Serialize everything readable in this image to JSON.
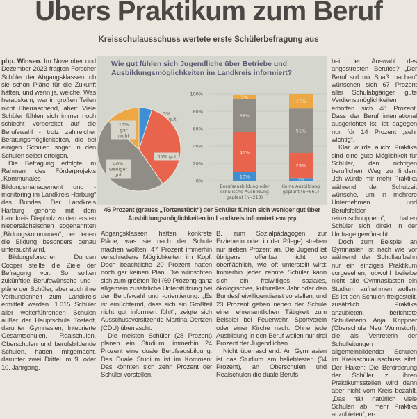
{
  "headline": "Übers Praktikum zum Beruf",
  "subtitle": "Kreisschulausschuss wertete erste Schülerbefragung aus",
  "col1": {
    "dateline": "pöp. Winsen.",
    "paragraphs": [
      "Im November und Dezember 2023 fragten Forscher Schüler der Abgangsklassen, ob sie schon Pläne für die Zukunft hätten, und wenn ja, welche. Was herauskam, war in großen Teilen nicht überraschend, aber: Viele Schüler fühlen sich immer noch schlecht vorbereitet auf die Berufswahl - trotz zahlreicher Beratungsmöglichkeiten, die bei einigen Schulen sogar in den Schulen selbst erfolgen.",
      "Die Befragung erfolgte im Rahmen des Förderprojekts „Kommunales Bildungsmanagement und -monitoring im Landkreis Harburg“ des Bundes. Der Landkreis Harburg gehörte mit dem Landkreis Diepholz zu den ersten niedersächsischen sogenannten „Bildungskommunen“, bei denen die Bildung besonders genau untersucht wird.",
      "Bildungsforscher Duncan Cooper stellte die Ziele der Befragung vor: So sollten zukünftige Berufswünsche und -pläne der Schüler, aber auch ihre Verbundenheit zum Landkreis ermittelt werden. 1.015 Schüler aller weiterführenden Schulen außer der Hauptschule Tostedt, darunter Gymnasien, Integrierte Gesamtschulen, Realschulen, Oberschulen und berufsbildende Schulen, hatten mitgemacht, darunter zwei Drittel im 9. oder 10. Jahrgang."
    ]
  },
  "col2": {
    "paragraphs": [
      "Abgangsklassen hatten konkrete Pläne, was sie nach der Schule machen wollten, 47 Prozent immerhin verschiedene Möglichkeiten im Kopf. Doch beachtliche 20 Prozent hatten noch gar keinen Plan. Die wünschten sich zum größten Teil (69 Prozent) ganz allgemein zusätzliche Unterstützung bei der Berufswahl und -orientierung. „Es ist ernüchternd, dass sich ein Großteil nicht gut informiert fühlt“, zeigte sich Ausschussvorsitzende Martina Oertzen (CDU) überrascht.",
      "Die meisten Schüler (28 Prozent) planen ein Studium, immerhin 24 Prozent eine duale Berufsausbildung. Das Duale Studium ist im Kommen: Das könnten sich zehn Prozent der Schüler vorstellen."
    ]
  },
  "col3": {
    "paragraphs": [
      "B. zum Sozialpädagogen, zur Erzieherin oder in der Pflege) streben nur sieben Prozent an. Die Jugend ist übrigens offenbar nicht so oberflächlich, wie oft unterstellt wird: Immerhin jeder zehnte Schüler kann sich ein freiwilliges soziales, ökologisches, kulturelles Jahr oder den Bundesfreiwilligendienst vorstellen, und 23 Prozent gehen neben der Schule einer ehrenamtlichen Tätigkeit zum Beispiel bei Feuerwehr, Sportverein oder einer Kirche nach. Ohne jede Ausbildung in den Beruf wollen nur drei Prozent der Jugendlichen.",
      "Nicht überraschend: An Gymnasien ist das Studium am beliebtesten (34 Prozent), an Oberschulen und Realschulen die duale Berufs-"
    ]
  },
  "col4": {
    "paragraphs": [
      "bei der Auswahl des angestrebten Berufes? „Der Beruf soll mir Spaß machen“ wünschen sich 67 Prozent aller Schulabgänger, gute Verdienstmöglichkeiten erhoffen sich 48 Prozent. Dass der Beruf international ausgerichtet ist, ist dagegen nur für 14 Prozent „sehr wichtig“.",
      "Klar wurde auch: Praktika sind eine gute Möglichkeit für Schüler, den richtigen beruflichen Weg zu finden. „Ich würde mir mehr Praktika während der Schulzeit wünsche, um in mehrere Unternehmen und Berufsfelder reinzuschnuppern“, hatten Schüler sich direkt in der Umfrage gewünscht.",
      "Doch zum Beispiel an Gymnasien ist nach wie vor während der Schullaufbahn nur ein einziges Praktikum vorgesehen, obwohl beileibe nicht alle Gymnasiasten ein Studium aufnehmen wollen. Es ist den Schulen freigestellt, zusätzlich Praktika anzubieten, berichtete Schulleiterin Anja Krippner (Oberschule Neu Wulmstorf), die als Vertreterin der Schulleitungen allgemeinbildender Schulen im Kreisschulausschuss sitzt. Der Haken: Die Beförderung der Schüler zu ihren Praktikumsstellen wird dann aber nicht vom Kreis bezahlt. „Das hält natürlich viele Schulen ab, mehr Praktika anzubieten“, er-"
    ]
  },
  "chart": {
    "title": "Wie gut fühlen sich Jugendliche über Betriebe und Ausbildungsmöglichkeiten im Landkreis informiert?"
  },
  "caption": {
    "text": "46 Prozent (graues „Tortenstück“) der Schüler fühlen sich weniger gut über Ausbildungsmöglichkeiten im Landkreis informiert",
    "credit": "Foto: pöp"
  },
  "chart_data": [
    {
      "type": "pie",
      "slices": [
        {
          "label": "5% sehr gut",
          "value": 5,
          "color": "#3f8fd2"
        },
        {
          "label": "35% gut",
          "value": 35,
          "color": "#e8644c"
        },
        {
          "label": "46% weniger gut",
          "value": 46,
          "color": "#8f8d85"
        },
        {
          "label": "13% gar nicht",
          "value": 13,
          "color": "#eda843"
        }
      ]
    },
    {
      "type": "bar",
      "stacked": true,
      "ylim": [
        0,
        100
      ],
      "yticks": [
        "0%",
        "20%",
        "40%",
        "60%",
        "80%",
        "100%"
      ],
      "categories": [
        "Berufsausbildung oder schulische Ausbildung geplant (n=213)",
        "Keine Ausbildung geplant (n=561)"
      ],
      "category_lines": [
        [
          "Berufsausbildung oder",
          "schulische Ausbildung",
          "geplant (n=213)"
        ],
        [
          "Keine Ausbildung",
          "geplant (n=561)"
        ]
      ],
      "series": [
        {
          "name": "sehr gut",
          "color": "#3f8fd2",
          "values": [
            10,
            3
          ],
          "labels": [
            "10%",
            "3%"
          ]
        },
        {
          "name": "gut",
          "color": "#e8644c",
          "values": [
            46,
            29
          ],
          "labels": [
            "46%",
            "29%"
          ]
        },
        {
          "name": "weniger gut",
          "color": "#8f8d85",
          "values": [
            38,
            51
          ],
          "labels": [
            "38%",
            "51%"
          ]
        },
        {
          "name": "gar nicht",
          "color": "#eda843",
          "values": [
            5,
            17
          ],
          "labels": [
            "5%",
            "17%"
          ]
        }
      ]
    }
  ]
}
